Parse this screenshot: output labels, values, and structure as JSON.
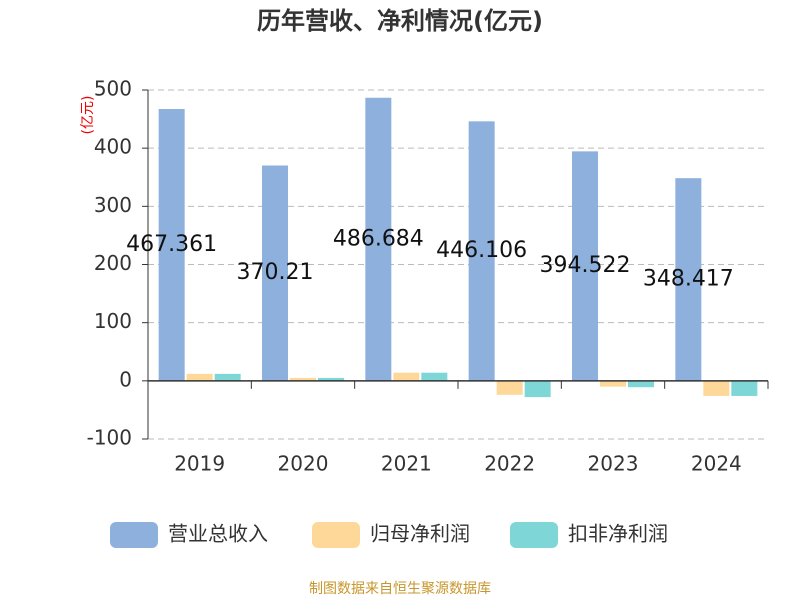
{
  "chart_data": {
    "type": "bar",
    "title": "历年营收、净利情况(亿元)",
    "y_label": "(亿元)",
    "source": "制图数据来自恒生聚源数据库",
    "categories": [
      "2019",
      "2020",
      "2021",
      "2022",
      "2023",
      "2024"
    ],
    "series": [
      {
        "name": "营业总收入",
        "color": "#8eb0dc",
        "values": [
          467.361,
          370.21,
          486.684,
          446.106,
          394.522,
          348.417
        ]
      },
      {
        "name": "归母净利润",
        "color": "#fdd899",
        "values": [
          12,
          5,
          14,
          -24,
          -10,
          -26
        ]
      },
      {
        "name": "扣非净利润",
        "color": "#7fd6d6",
        "values": [
          12,
          5,
          14,
          -28,
          -11,
          -26
        ]
      }
    ],
    "ylim": [
      -100,
      500
    ],
    "yticks": [
      -100,
      0,
      100,
      200,
      300,
      400,
      500
    ],
    "grid": true,
    "legend": "bottom"
  }
}
